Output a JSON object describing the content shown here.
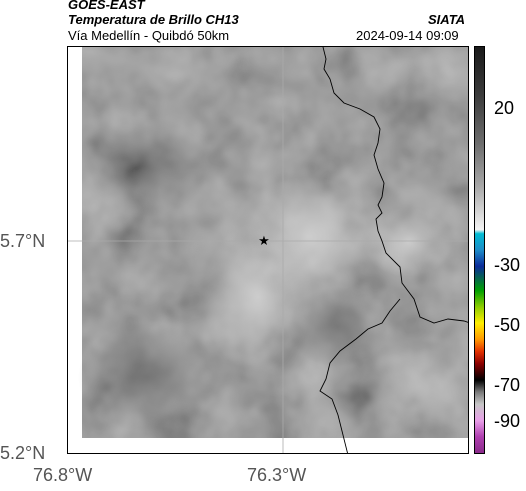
{
  "header": {
    "satellite": "GOES-EAST",
    "product": "Temperatura de Brillo CH13",
    "organization": "SIATA",
    "region": "Vía Medellín - Quibdó 50km",
    "datetime": "2024-09-14 09:09"
  },
  "map": {
    "lat_labels": [
      "5.7°N",
      "5.2°N"
    ],
    "lon_labels": [
      "76.8°W",
      "76.3°W"
    ],
    "marker": "star-marker",
    "colors": {
      "frame": "#000000",
      "gridline": "#aaaaaa",
      "border": "#000000"
    }
  },
  "colorbar": {
    "ticks": [
      "20",
      "-30",
      "-50",
      "-70",
      "-90"
    ]
  }
}
